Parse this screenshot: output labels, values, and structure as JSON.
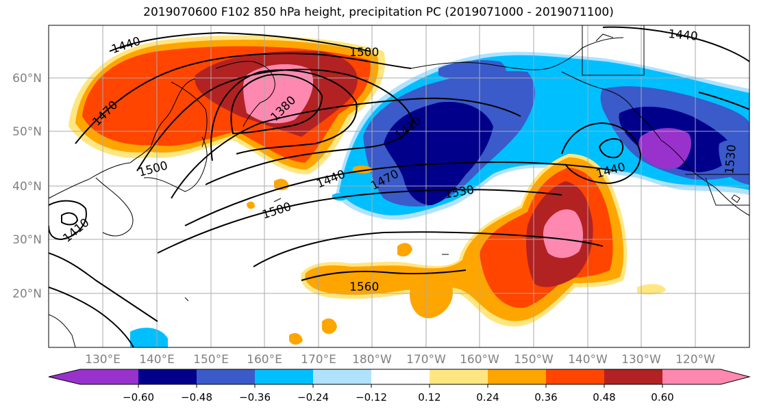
{
  "title": "2019070600 F102 850 hPa height, precipitation PC (2019071000 - 2019071100)",
  "map": {
    "lon_labels": [
      "130°E",
      "140°E",
      "150°E",
      "160°E",
      "170°E",
      "180°W",
      "170°W",
      "160°W",
      "150°W",
      "140°W",
      "130°W",
      "120°W"
    ],
    "lat_labels": [
      "60°N",
      "50°N",
      "40°N",
      "30°N",
      "20°N"
    ],
    "contour_labels": [
      "1440",
      "1500",
      "1470",
      "1380",
      "1410",
      "1500",
      "1440",
      "1470",
      "1500",
      "1530",
      "1410",
      "1560",
      "1440",
      "1440",
      "1530"
    ],
    "fill_colors": {
      "strong_neg": "#9932CC",
      "neg_060": "#00008B",
      "neg_048": "#3A5BC9",
      "neg_036": "#00BFFF",
      "neg_024": "#B0E2FF",
      "pos_012": "#FFE680",
      "pos_024": "#FFA500",
      "pos_036": "#FF4500",
      "pos_048": "#B22222",
      "pos_060": "#FF88B0"
    }
  },
  "colorbar": {
    "ticks": [
      "−0.60",
      "−0.48",
      "−0.36",
      "−0.24",
      "−0.12",
      "0.12",
      "0.24",
      "0.36",
      "0.48",
      "0.60"
    ],
    "colors": [
      "#9932CC",
      "#00008B",
      "#3A5BC9",
      "#00BFFF",
      "#B0E2FF",
      "#FFFFFF",
      "#FFE680",
      "#FFA500",
      "#FF4500",
      "#B22222",
      "#FF88B0"
    ]
  }
}
